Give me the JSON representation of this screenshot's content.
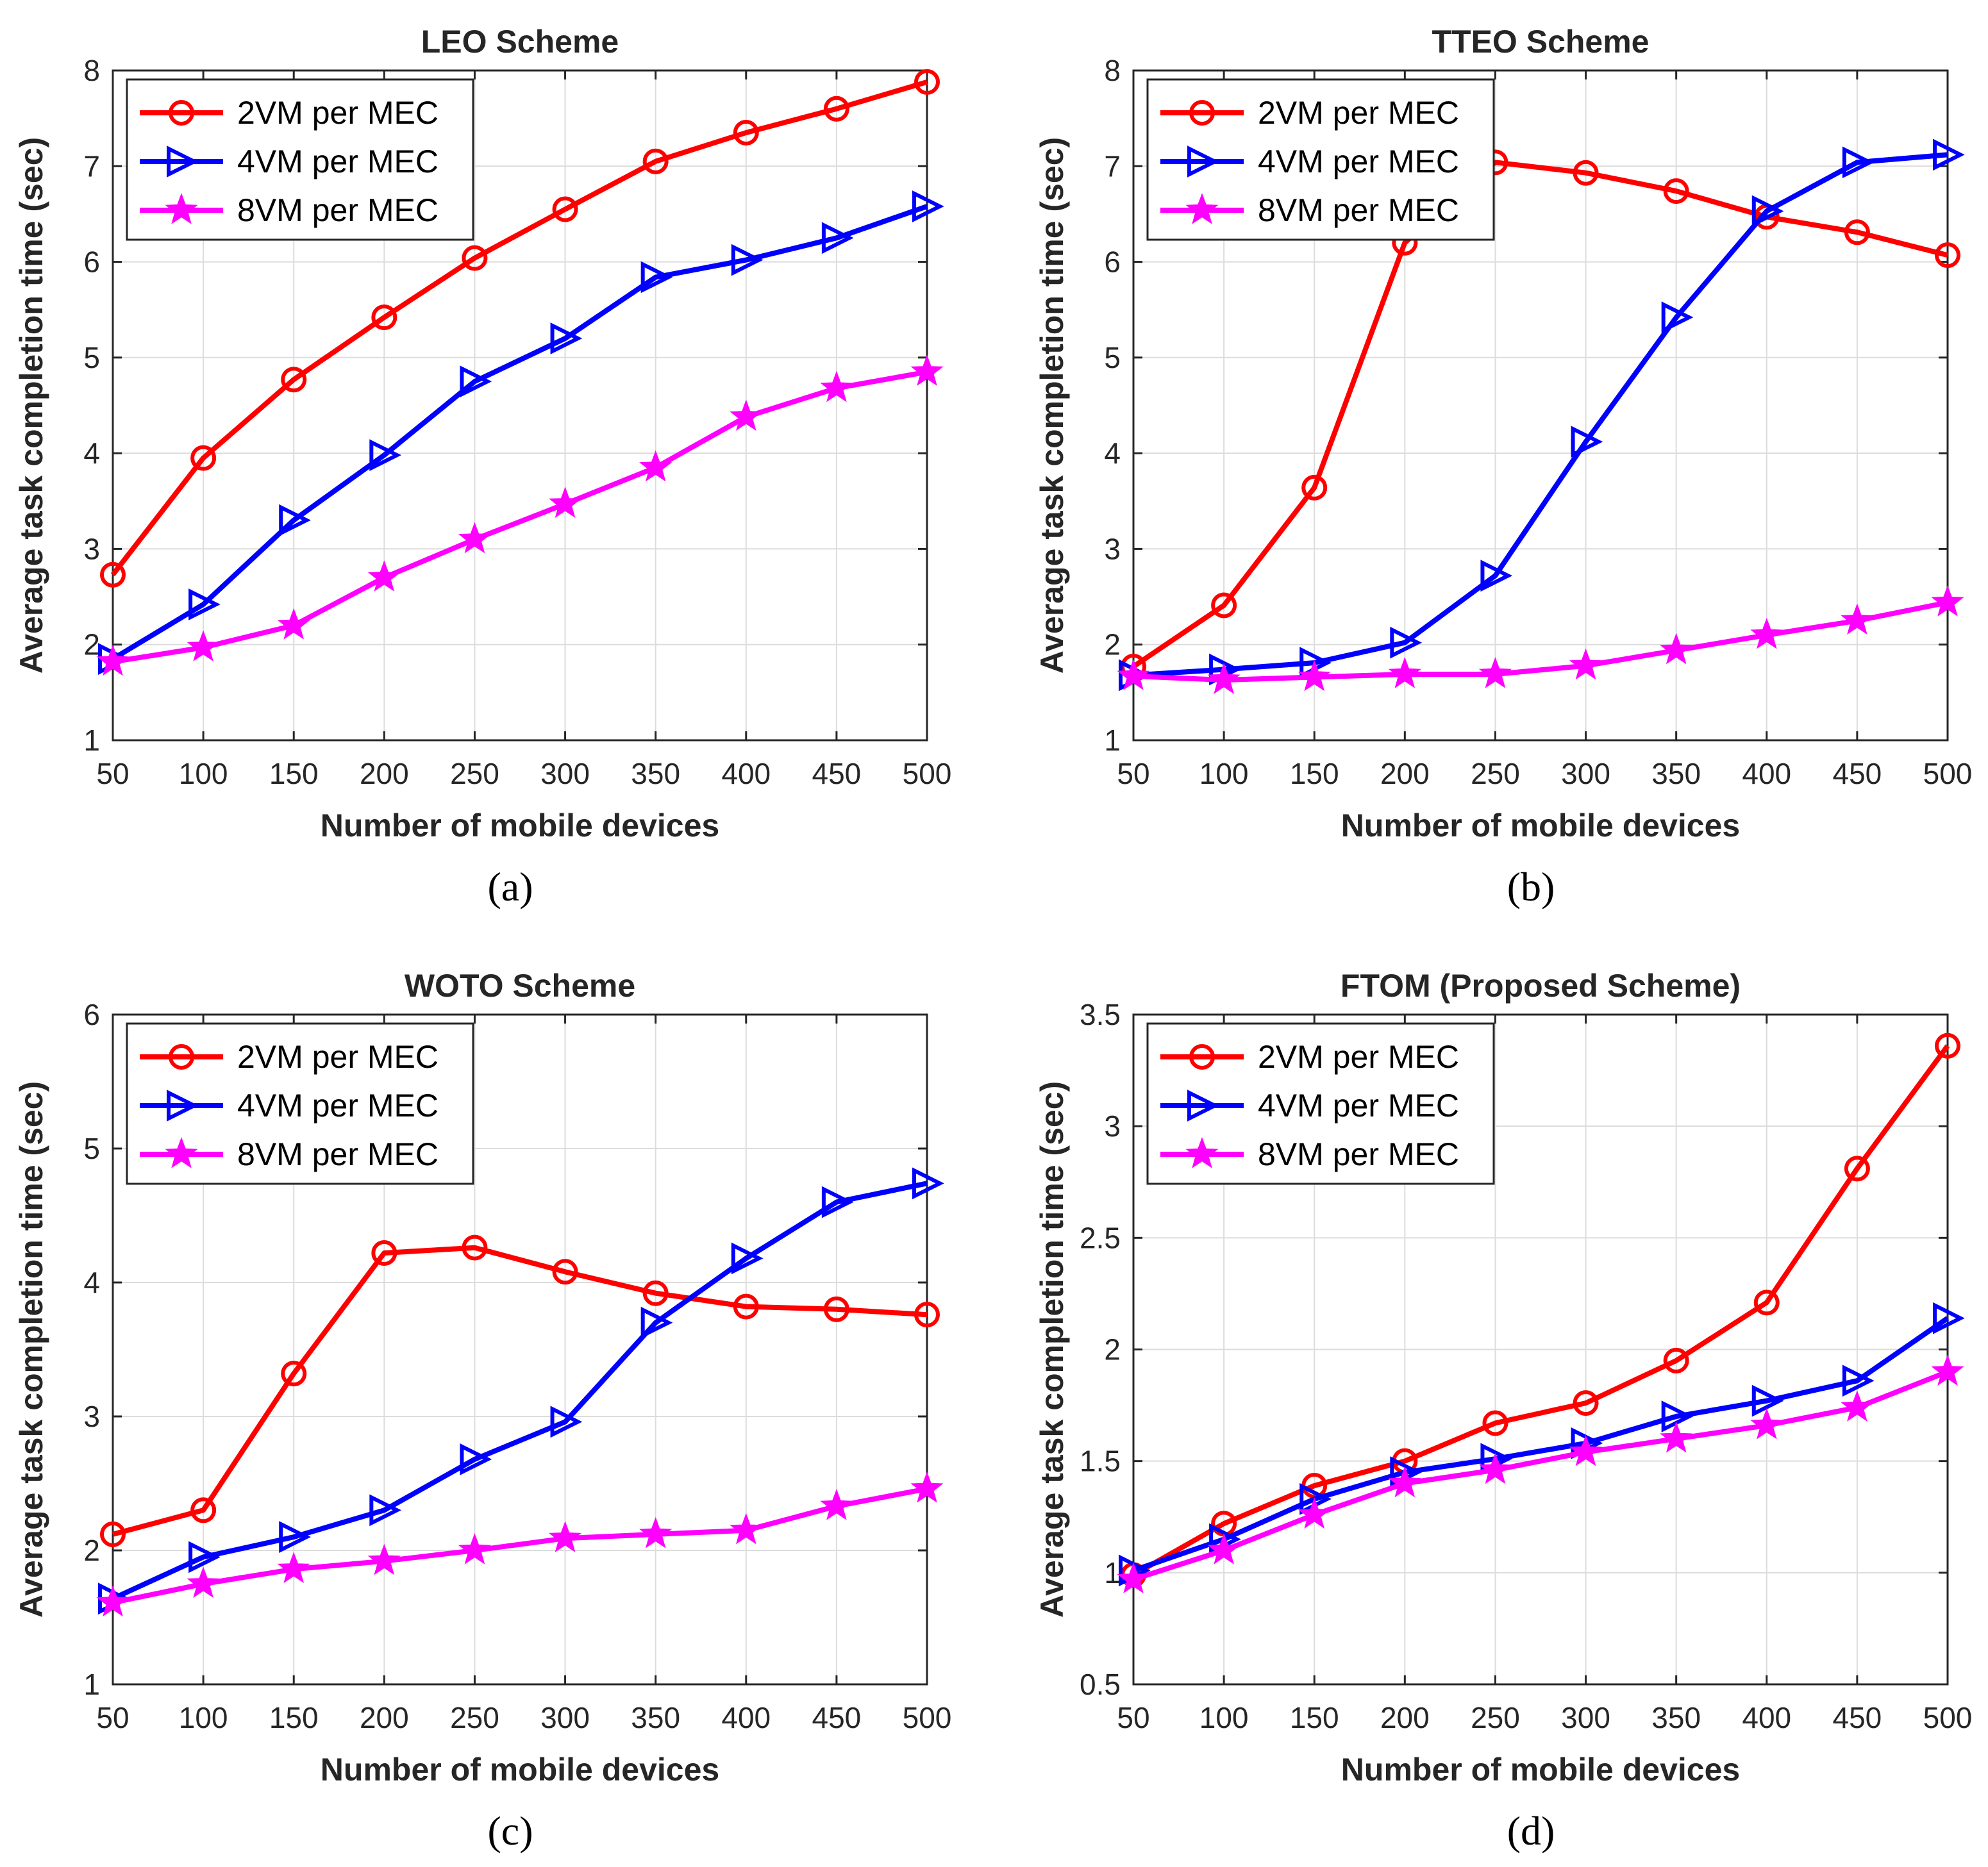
{
  "colors": {
    "2VM": "#ff0000",
    "4VM": "#0000ff",
    "8VM": "#ff00ff",
    "axis": "#262626",
    "grid": "#dcdcdc"
  },
  "chart_data": [
    {
      "type": "line",
      "panel_label": "(a)",
      "title": "LEO Scheme",
      "xlabel": "Number of mobile devices",
      "ylabel": "Average task completion time (sec)",
      "x": [
        50,
        100,
        150,
        200,
        250,
        300,
        350,
        400,
        450,
        500
      ],
      "xlim": [
        50,
        500
      ],
      "ylim": [
        1,
        8
      ],
      "yticks": [
        1,
        2,
        3,
        4,
        5,
        6,
        7,
        8
      ],
      "ytick_labels": [
        "1",
        "2",
        "3",
        "4",
        "5",
        "6",
        "7",
        "8"
      ],
      "legend_position": "top-left",
      "grid": true,
      "series": [
        {
          "name": "2VM per MEC",
          "color": "#ff0000",
          "marker": "circle",
          "values": [
            2.73,
            3.95,
            4.77,
            5.42,
            6.04,
            6.55,
            7.05,
            7.35,
            7.6,
            7.88
          ]
        },
        {
          "name": "4VM per MEC",
          "color": "#0000ff",
          "marker": "triangle-right",
          "values": [
            1.85,
            2.42,
            3.3,
            3.98,
            4.75,
            5.2,
            5.84,
            6.02,
            6.25,
            6.58
          ]
        },
        {
          "name": "8VM per MEC",
          "color": "#ff00ff",
          "marker": "star",
          "values": [
            1.82,
            1.97,
            2.2,
            2.7,
            3.1,
            3.47,
            3.85,
            4.38,
            4.68,
            4.85
          ]
        }
      ]
    },
    {
      "type": "line",
      "panel_label": "(b)",
      "title": "TTEO Scheme",
      "xlabel": "Number of mobile devices",
      "ylabel": "Average task completion time (sec)",
      "x": [
        50,
        100,
        150,
        200,
        250,
        300,
        350,
        400,
        450,
        500
      ],
      "xlim": [
        50,
        500
      ],
      "ylim": [
        1,
        8
      ],
      "yticks": [
        1,
        2,
        3,
        4,
        5,
        6,
        7,
        8
      ],
      "ytick_labels": [
        "1",
        "2",
        "3",
        "4",
        "5",
        "6",
        "7",
        "8"
      ],
      "legend_position": "top-left",
      "grid": true,
      "series": [
        {
          "name": "2VM per MEC",
          "color": "#ff0000",
          "marker": "circle",
          "values": [
            1.77,
            2.41,
            3.64,
            6.2,
            7.04,
            6.93,
            6.74,
            6.47,
            6.31,
            6.07
          ]
        },
        {
          "name": "4VM per MEC",
          "color": "#0000ff",
          "marker": "triangle-right",
          "values": [
            1.68,
            1.74,
            1.81,
            2.02,
            2.72,
            4.12,
            5.42,
            6.53,
            7.04,
            7.12
          ]
        },
        {
          "name": "8VM per MEC",
          "color": "#ff00ff",
          "marker": "star",
          "values": [
            1.67,
            1.63,
            1.66,
            1.69,
            1.69,
            1.78,
            1.94,
            2.1,
            2.25,
            2.44
          ]
        }
      ]
    },
    {
      "type": "line",
      "panel_label": "(c)",
      "title": "WOTO Scheme",
      "xlabel": "Number of mobile devices",
      "ylabel": "Average task completion time (sec)",
      "x": [
        50,
        100,
        150,
        200,
        250,
        300,
        350,
        400,
        450,
        500
      ],
      "xlim": [
        50,
        500
      ],
      "ylim": [
        1,
        6
      ],
      "yticks": [
        1,
        2,
        3,
        4,
        5,
        6
      ],
      "ytick_labels": [
        "1",
        "2",
        "3",
        "4",
        "5",
        "6"
      ],
      "legend_position": "top-left",
      "grid": true,
      "series": [
        {
          "name": "2VM per MEC",
          "color": "#ff0000",
          "marker": "circle",
          "values": [
            2.12,
            2.3,
            3.32,
            4.22,
            4.26,
            4.08,
            3.92,
            3.82,
            3.8,
            3.76
          ]
        },
        {
          "name": "4VM per MEC",
          "color": "#0000ff",
          "marker": "triangle-right",
          "values": [
            1.64,
            1.95,
            2.1,
            2.3,
            2.68,
            2.96,
            3.7,
            4.18,
            4.6,
            4.74
          ]
        },
        {
          "name": "8VM per MEC",
          "color": "#ff00ff",
          "marker": "star",
          "values": [
            1.61,
            1.75,
            1.86,
            1.92,
            2.0,
            2.09,
            2.12,
            2.15,
            2.33,
            2.46
          ]
        }
      ]
    },
    {
      "type": "line",
      "panel_label": "(d)",
      "title": "FTOM (Proposed Scheme)",
      "xlabel": "Number of mobile devices",
      "ylabel": "Average task completion time (sec)",
      "x": [
        50,
        100,
        150,
        200,
        250,
        300,
        350,
        400,
        450,
        500
      ],
      "xlim": [
        50,
        500
      ],
      "ylim": [
        0.5,
        3.5
      ],
      "yticks": [
        0.5,
        1,
        1.5,
        2,
        2.5,
        3,
        3.5
      ],
      "ytick_labels": [
        "0.5",
        "1",
        "1.5",
        "2",
        "2.5",
        "3",
        "3.5"
      ],
      "legend_position": "top-left",
      "grid": true,
      "series": [
        {
          "name": "2VM per MEC",
          "color": "#ff0000",
          "marker": "circle",
          "values": [
            0.99,
            1.22,
            1.39,
            1.5,
            1.67,
            1.76,
            1.95,
            2.21,
            2.81,
            3.36
          ]
        },
        {
          "name": "4VM per MEC",
          "color": "#0000ff",
          "marker": "triangle-right",
          "values": [
            1.01,
            1.15,
            1.33,
            1.45,
            1.51,
            1.58,
            1.7,
            1.77,
            1.86,
            2.14
          ]
        },
        {
          "name": "8VM per MEC",
          "color": "#ff00ff",
          "marker": "star",
          "values": [
            0.97,
            1.1,
            1.26,
            1.4,
            1.46,
            1.54,
            1.6,
            1.66,
            1.74,
            1.9
          ]
        }
      ]
    }
  ]
}
